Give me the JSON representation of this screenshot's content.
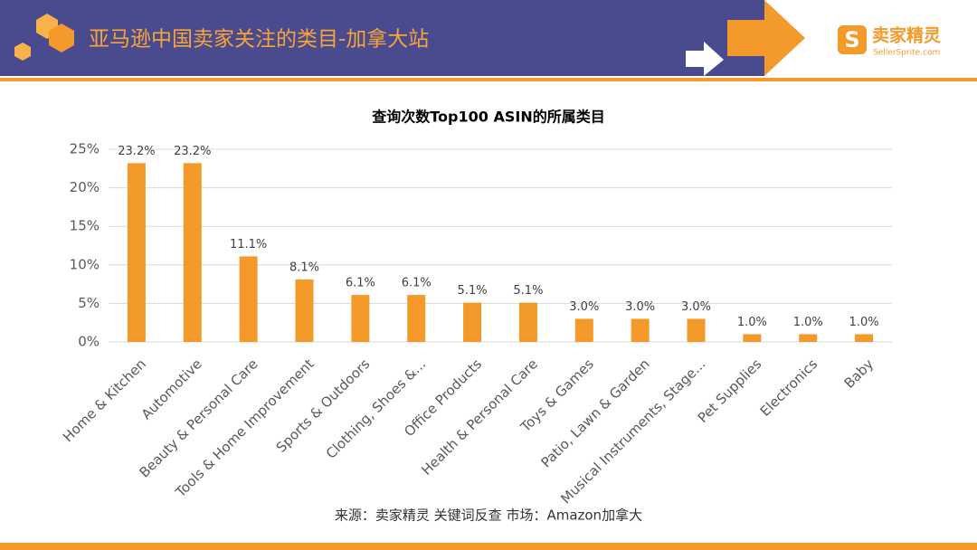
{
  "header": {
    "title": "亚马逊中国卖家关注的类目-加拿大站",
    "logo": "卖家精灵",
    "logo_sub": "SellerSprite.com"
  },
  "chart_data": {
    "type": "bar",
    "title": "查询次数Top100 ASIN的所属类目",
    "categories": [
      "Home & Kitchen",
      "Automotive",
      "Beauty & Personal Care",
      "Tools & Home Improvement",
      "Sports & Outdoors",
      "Clothing, Shoes &...",
      "Office Products",
      "Health & Personal Care",
      "Toys & Games",
      "Patio, Lawn & Garden",
      "Musical Instruments, Stage...",
      "Pet Supplies",
      "Electronics",
      "Baby"
    ],
    "values": [
      23.2,
      23.2,
      11.1,
      8.1,
      6.1,
      6.1,
      5.1,
      5.1,
      3.0,
      3.0,
      3.0,
      1.0,
      1.0,
      1.0
    ],
    "value_labels": [
      "23.2%",
      "23.2%",
      "11.1%",
      "8.1%",
      "6.1%",
      "6.1%",
      "5.1%",
      "5.1%",
      "3.0%",
      "3.0%",
      "3.0%",
      "1.0%",
      "1.0%",
      "1.0%"
    ],
    "color": "#f39a2b",
    "ylim": [
      0,
      25
    ],
    "yticks": [
      {
        "value": 0,
        "label": "0%"
      },
      {
        "value": 5,
        "label": "5%"
      },
      {
        "value": 10,
        "label": "10%"
      },
      {
        "value": 15,
        "label": "15%"
      },
      {
        "value": 20,
        "label": "20%"
      },
      {
        "value": 25,
        "label": "25%"
      }
    ],
    "grid": true
  },
  "source": "来源：卖家精灵 关键词反查   市场：Amazon加拿大"
}
